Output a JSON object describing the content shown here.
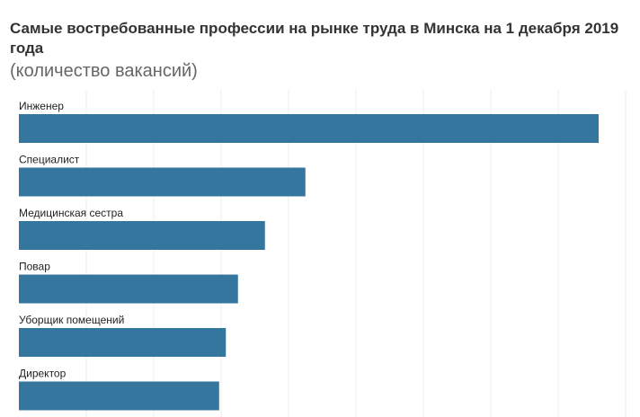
{
  "chart_data": {
    "type": "bar",
    "orientation": "horizontal",
    "title": "Самые востребованные профессии на рынке труда в Минска на 1 декабря 2019 года",
    "subtitle": "(количество вакансий)",
    "categories": [
      "Инженер",
      "Специалист",
      "Медицинская сестра",
      "Повар",
      "Уборщик помещений",
      "Директор"
    ],
    "values": [
      860,
      425,
      365,
      325,
      307,
      297
    ],
    "xlim": [
      0,
      900
    ],
    "grid_step": 100,
    "grid": true,
    "bar_color": "#34769e",
    "xlabel": "",
    "ylabel": ""
  }
}
